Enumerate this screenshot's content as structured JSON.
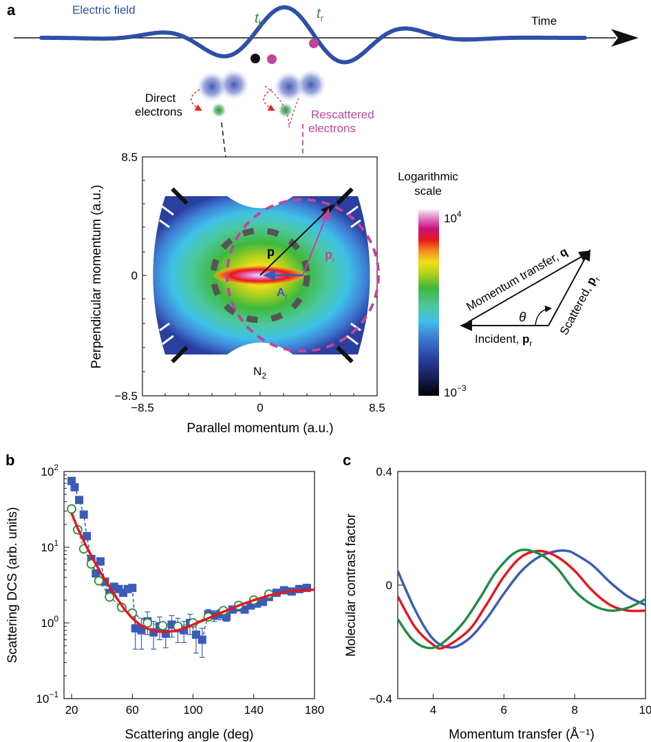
{
  "figure": {
    "panel_a": {
      "letter": "a",
      "field_label": "Electric field",
      "time_label": "Time",
      "t_b": "t",
      "t_b_sub": "b",
      "t_r": "t",
      "t_r_sub": "r",
      "direct_label_1": "Direct",
      "direct_label_2": "electrons",
      "rescattered_label_1": "Rescattered",
      "rescattered_label_2": "electrons",
      "molecule": "N",
      "molecule_sub": "2",
      "x_axis_label": "Parallel momentum (a.u.)",
      "y_axis_label": "Perpendicular momentum (a.u.)",
      "x_ticks": [
        "−8.5",
        "0",
        "8.5"
      ],
      "y_ticks": [
        "8.5",
        "0",
        "−8.5"
      ],
      "vector_p": "p",
      "vector_pr": "p",
      "vector_pr_sub": "r",
      "vector_Ar": "A",
      "vector_Ar_sub": "r",
      "colorbar_title_1": "Logarithmic",
      "colorbar_title_2": "scale",
      "colorbar_max": "10",
      "colorbar_max_exp": "4",
      "colorbar_min": "10",
      "colorbar_min_exp": "−3",
      "triangle_q_label": "Momentum transfer, ",
      "triangle_q_sym": "q",
      "triangle_scattered_label": "Scattered, ",
      "triangle_scattered_sym": "p",
      "triangle_scattered_sub": "r",
      "triangle_incident_label": "Incident, ",
      "triangle_incident_sym": "p",
      "triangle_incident_sub": "r",
      "theta": "θ",
      "colors": {
        "field": "#2f4fa8",
        "dot_black": "#111111",
        "dot_magenta": "#c2459a",
        "t_label": "#2e8b3e",
        "rescattered": "#c2459a",
        "direct_arrow": "#e52420"
      }
    },
    "chart_data": [
      {
        "panel": "b",
        "type": "scatter",
        "xlabel": "Scattering angle (deg)",
        "ylabel": "Scattering DCS (arb. units)",
        "xlim": [
          15,
          180
        ],
        "ylim_log10": [
          -1,
          2
        ],
        "y_scale": "log",
        "x_ticks": [
          "20",
          "60",
          "100",
          "140",
          "180"
        ],
        "x_tick_values": [
          20,
          60,
          100,
          140,
          180
        ],
        "y_ticks": [
          {
            "base": "10",
            "exp": "2",
            "value": 100
          },
          {
            "base": "10",
            "exp": "1",
            "value": 10
          },
          {
            "base": "10",
            "exp": "0",
            "value": 1
          },
          {
            "base": "10",
            "exp": "−1",
            "value": 0.1
          }
        ],
        "series": [
          {
            "style": "squares",
            "color": "#3a5bb8",
            "x": [
              20,
              22,
              25,
              28,
              30,
              33,
              36,
              39,
              42,
              45,
              48,
              51,
              54,
              57,
              60,
              62,
              66,
              70,
              74,
              78,
              82,
              86,
              90,
              94,
              98,
              102,
              106,
              110,
              114,
              118,
              122,
              126,
              130,
              134,
              138,
              142,
              146,
              150,
              155,
              160,
              165,
              170,
              175
            ],
            "y": [
              75,
              62,
              42,
              27,
              14,
              7,
              4.5,
              6.5,
              3.5,
              2.5,
              3,
              2.8,
              2.5,
              2.8,
              2.9,
              0.85,
              0.8,
              1.05,
              0.75,
              0.9,
              0.72,
              0.95,
              0.85,
              0.8,
              1.0,
              0.7,
              0.6,
              1.3,
              1.25,
              1.3,
              1.2,
              1.5,
              1.6,
              1.5,
              1.7,
              1.8,
              1.9,
              2.2,
              2.5,
              2.7,
              2.6,
              2.8,
              2.9
            ],
            "err": [
              0,
              0,
              0,
              0,
              0,
              0,
              0,
              0,
              0,
              0,
              0,
              0,
              0,
              0,
              0,
              0.4,
              0.35,
              0.35,
              0.3,
              0.3,
              0.25,
              0.3,
              0.3,
              0.25,
              0.3,
              0.3,
              0.25,
              0.2,
              0.2,
              0.2,
              0.15,
              0.15,
              0.15,
              0,
              0,
              0,
              0,
              0,
              0,
              0,
              0,
              0,
              0
            ]
          },
          {
            "style": "open-circles",
            "color": "#2e8b3e",
            "x": [
              20,
              24,
              28,
              33,
              38,
              45,
              53,
              60,
              70,
              80,
              90,
              100,
              110,
              120,
              130,
              140,
              150
            ],
            "y": [
              32,
              17,
              9.5,
              6,
              3.6,
              2.2,
              1.6,
              1.35,
              1.0,
              0.92,
              0.9,
              1.0,
              1.2,
              1.45,
              1.7,
              2.0,
              2.4
            ]
          },
          {
            "style": "line",
            "color": "#e8161e",
            "x": [
              20,
              25,
              30,
              35,
              40,
              45,
              50,
              55,
              60,
              65,
              70,
              75,
              80,
              85,
              90,
              95,
              100,
              110,
              120,
              130,
              140,
              150,
              160,
              170,
              180
            ],
            "y": [
              28,
              16,
              10,
              6.5,
              4.3,
              3.0,
              2.1,
              1.5,
              1.15,
              0.95,
              0.84,
              0.78,
              0.76,
              0.77,
              0.8,
              0.86,
              0.95,
              1.15,
              1.4,
              1.7,
              2.0,
              2.3,
              2.55,
              2.7,
              2.75
            ]
          }
        ]
      },
      {
        "panel": "c",
        "type": "line",
        "xlabel": "Momentum transfer (Å⁻¹)",
        "ylabel": "Molecular contrast factor",
        "xlim": [
          3,
          10
        ],
        "ylim": [
          -0.4,
          0.4
        ],
        "x_ticks": [
          "4",
          "6",
          "8",
          "10"
        ],
        "x_tick_values": [
          4,
          6,
          8,
          10
        ],
        "y_ticks": [
          "0.4",
          "0",
          "−0.4"
        ],
        "y_tick_values": [
          0.4,
          0,
          -0.4
        ],
        "series": [
          {
            "color": "#3a5bb8",
            "x": [
              3.0,
              3.5,
              4.0,
              4.5,
              5.0,
              5.5,
              6.0,
              6.5,
              7.0,
              7.5,
              7.8,
              8.0,
              8.5,
              9.0,
              9.5,
              10.0
            ],
            "y": [
              0.05,
              -0.09,
              -0.19,
              -0.22,
              -0.19,
              -0.12,
              -0.03,
              0.05,
              0.1,
              0.12,
              0.12,
              0.11,
              0.07,
              0.01,
              -0.04,
              -0.07
            ]
          },
          {
            "color": "#e8161e",
            "x": [
              3.0,
              3.5,
              4.0,
              4.3,
              5.0,
              5.5,
              6.0,
              6.5,
              7.0,
              7.5,
              8.0,
              8.5,
              9.0,
              9.5,
              10.0
            ],
            "y": [
              -0.04,
              -0.15,
              -0.21,
              -0.22,
              -0.16,
              -0.07,
              0.03,
              0.1,
              0.12,
              0.1,
              0.05,
              -0.02,
              -0.07,
              -0.09,
              -0.09
            ]
          },
          {
            "color": "#1e8c45",
            "x": [
              3.0,
              3.4,
              3.8,
              4.2,
              4.8,
              5.3,
              5.8,
              6.4,
              7.0,
              7.5,
              8.0,
              8.5,
              9.0,
              9.5,
              10.0
            ],
            "y": [
              -0.12,
              -0.19,
              -0.22,
              -0.21,
              -0.14,
              -0.05,
              0.05,
              0.12,
              0.11,
              0.06,
              -0.02,
              -0.07,
              -0.09,
              -0.08,
              -0.05
            ]
          }
        ]
      }
    ]
  }
}
